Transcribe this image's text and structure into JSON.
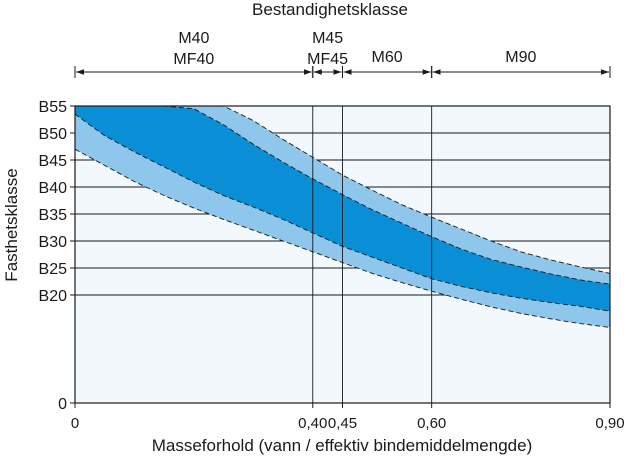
{
  "chart_data": {
    "type": "area",
    "title": "Bestandighetsklasse",
    "xlabel": "Masseforhold (vann / effektiv bindemiddelmengde)",
    "ylabel": "Fasthetsklasse",
    "xlim": [
      0,
      0.9
    ],
    "ylim": [
      0,
      55
    ],
    "x_ticks": [
      {
        "value": 0,
        "label": "0"
      },
      {
        "value": 0.4,
        "label": "0,40"
      },
      {
        "value": 0.45,
        "label": "0,45"
      },
      {
        "value": 0.6,
        "label": "0,60"
      },
      {
        "value": 0.9,
        "label": "0,90"
      }
    ],
    "y_ticks": [
      {
        "value": 0,
        "label": "0"
      },
      {
        "value": 20,
        "label": "B20"
      },
      {
        "value": 25,
        "label": "B25"
      },
      {
        "value": 30,
        "label": "B30"
      },
      {
        "value": 35,
        "label": "B35"
      },
      {
        "value": 40,
        "label": "B40"
      },
      {
        "value": 45,
        "label": "B45"
      },
      {
        "value": 50,
        "label": "B50"
      },
      {
        "value": 55,
        "label": "B55"
      }
    ],
    "durability_classes": [
      {
        "labels": [
          "M40",
          "MF40"
        ],
        "from": 0,
        "to": 0.4
      },
      {
        "labels": [
          "M45",
          "MF45"
        ],
        "from": 0.4,
        "to": 0.45
      },
      {
        "labels": [
          "M60"
        ],
        "from": 0.45,
        "to": 0.6
      },
      {
        "labels": [
          "M90"
        ],
        "from": 0.6,
        "to": 0.9
      }
    ],
    "bands": {
      "x": [
        0,
        0.05,
        0.1,
        0.15,
        0.2,
        0.25,
        0.3,
        0.35,
        0.4,
        0.45,
        0.5,
        0.55,
        0.6,
        0.65,
        0.7,
        0.75,
        0.8,
        0.85,
        0.9
      ],
      "outer_upper": [
        55,
        55,
        55,
        55,
        55,
        55,
        52.3,
        48.8,
        45.5,
        42.2,
        39.4,
        36.7,
        34.4,
        32.2,
        30.0,
        28.0,
        26.5,
        25.2,
        24.0
      ],
      "inner_upper": [
        55,
        55,
        55,
        55,
        54.5,
        51.5,
        47.9,
        44.6,
        41.5,
        38.6,
        35.8,
        33.3,
        30.8,
        28.5,
        26.6,
        25.2,
        23.9,
        22.8,
        22.0
      ],
      "inner_lower": [
        53.5,
        49.5,
        46.5,
        43.7,
        40.9,
        38.4,
        36.3,
        34.0,
        31.5,
        29.0,
        27.0,
        25.0,
        23.0,
        21.6,
        20.4,
        19.4,
        18.6,
        17.9,
        17.0
      ],
      "outer_lower": [
        47,
        44.0,
        41.0,
        38.4,
        36.1,
        34.0,
        32.0,
        30.0,
        28.0,
        26.0,
        24.0,
        22.3,
        20.7,
        19.2,
        17.8,
        16.6,
        15.6,
        14.7,
        14.0
      ]
    },
    "colors": {
      "inner_band": "#0a8fd6",
      "outer_band": "#8ec6ec",
      "plot_background": "#f2f8fc"
    },
    "grid": true
  }
}
